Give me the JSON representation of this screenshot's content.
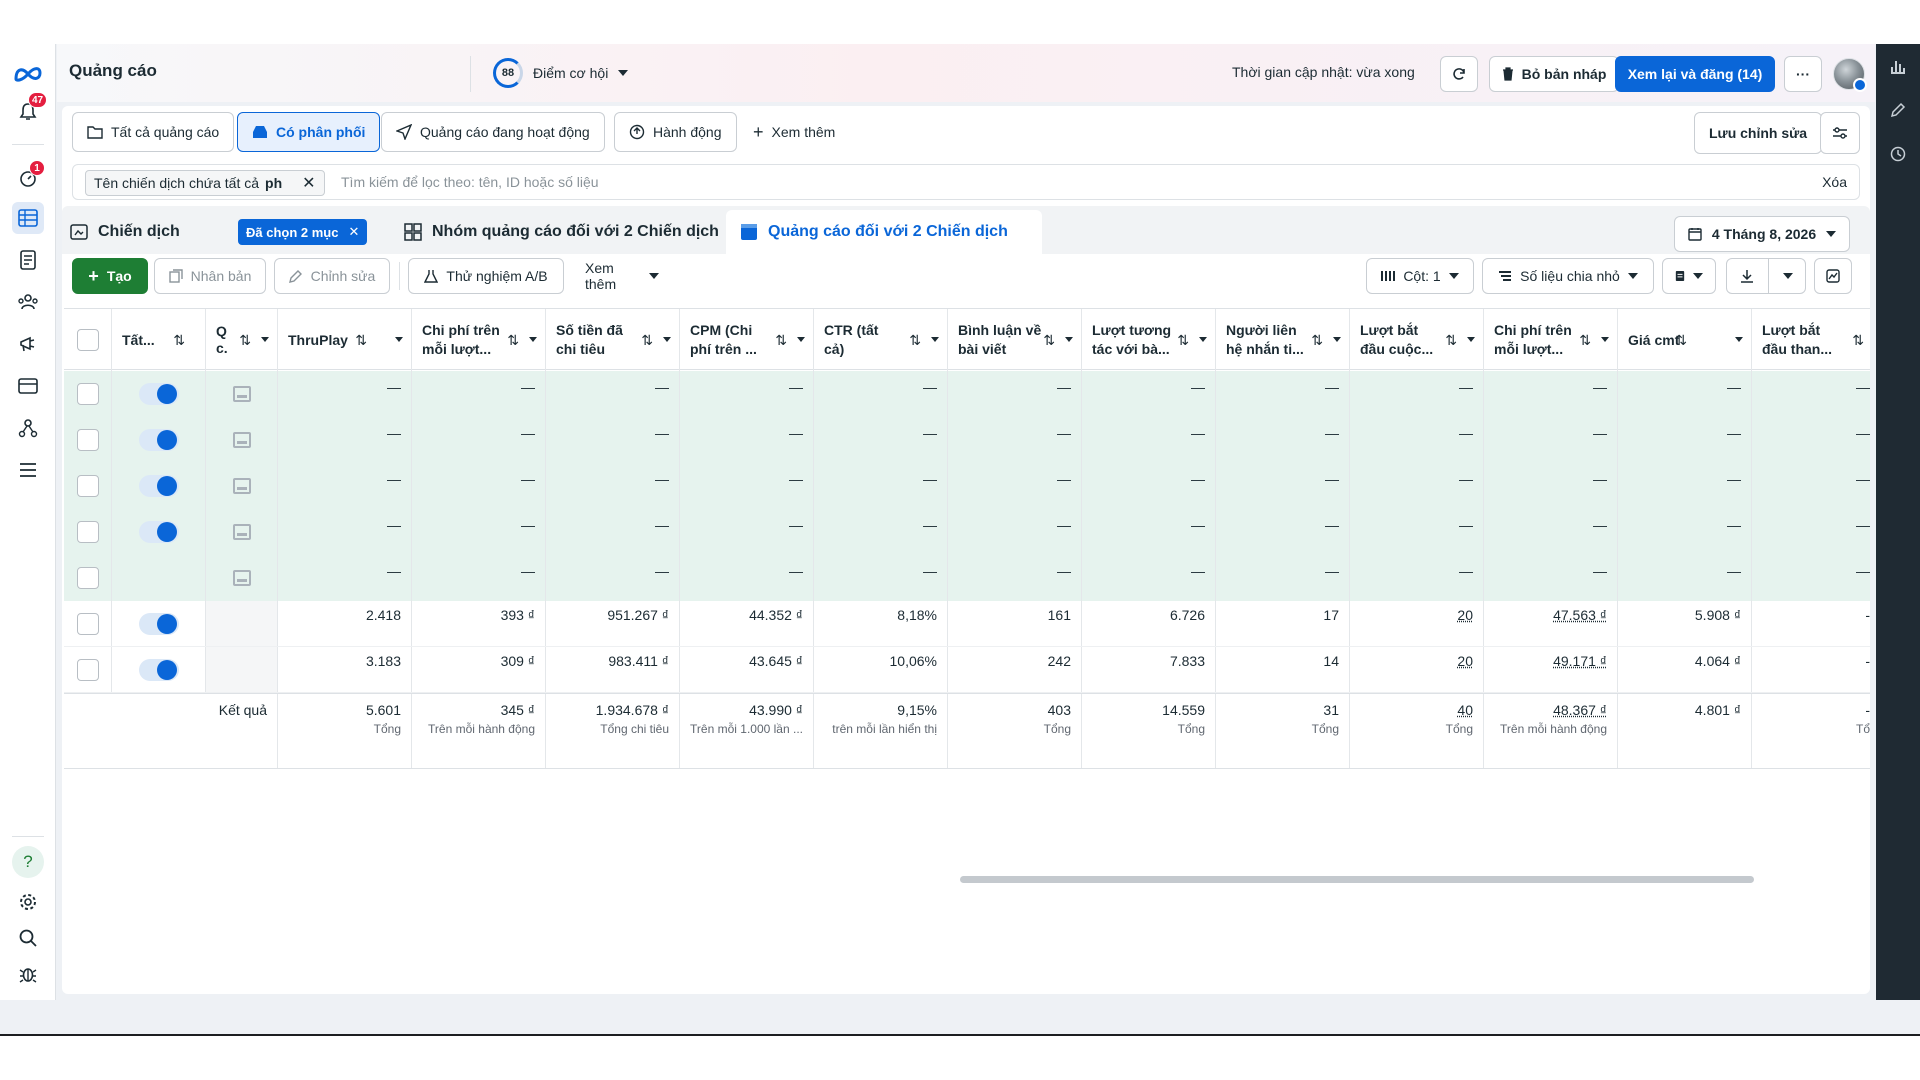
{
  "header": {
    "title": "Quảng cáo",
    "score_value": "88",
    "score_label": "Điểm cơ hội",
    "update_time": "Thời gian cập nhật: vừa xong",
    "discard_label": "Bỏ bản nháp",
    "review_label": "Xem lại và đăng (14)",
    "more_label": "···"
  },
  "leftnav": {
    "notifications_badge": "47",
    "alerts_badge": "1"
  },
  "chips": {
    "all_ads": "Tất cả quảng cáo",
    "delivering": "Có phân phối",
    "active_ads": "Quảng cáo đang hoạt động",
    "actions": "Hành động",
    "see_more": "Xem thêm",
    "save_edits": "Lưu chỉnh sửa"
  },
  "filter": {
    "token_label": "Tên chiến dịch chứa tất cả",
    "token_value": "ph",
    "placeholder": "Tìm kiếm để lọc theo: tên, ID hoặc số liệu",
    "clear": "Xóa"
  },
  "tabs": {
    "campaigns": "Chiến dịch",
    "selected_pill": "Đã chọn 2 mục",
    "adsets": "Nhóm quảng cáo đối với 2 Chiến dịch",
    "ads": "Quảng cáo đối với 2 Chiến dịch",
    "date": "4 Tháng 8, 2026"
  },
  "toolbar": {
    "create": "Tạo",
    "duplicate": "Nhân bản",
    "edit": "Chỉnh sửa",
    "ab_test": "Thử nghiệm A/B",
    "see_more": "Xem thêm",
    "columns": "Cột: 1",
    "breakdown": "Số liệu chia nhỏ"
  },
  "table": {
    "headers": [
      "Tất...",
      "Q c.",
      "ThruPlay",
      "Chi phí trên mỗi lượt...",
      "Số tiền đã chi tiêu",
      "CPM (Chi phí trên ...",
      "CTR (tất cả)",
      "Bình luận về bài viết",
      "Lượt tương tác với bà...",
      "Người liên hệ nhắn ti...",
      "Lượt bắt đầu cuộc...",
      "Chi phí trên mỗi lượt...",
      "Giá cmt",
      "Lượt bắt đầu than..."
    ],
    "dash": "—",
    "rows": [
      [
        "2.418",
        "393 ₫",
        "951.267 ₫",
        "44.352 ₫",
        "8,18%",
        "161",
        "6.726",
        "17",
        "20",
        "47.563 ₫",
        "5.908 ₫"
      ],
      [
        "3.183",
        "309 ₫",
        "983.411 ₫",
        "43.645 ₫",
        "10,06%",
        "242",
        "7.833",
        "14",
        "20",
        "49.171 ₫",
        "4.064 ₫"
      ]
    ],
    "summary": {
      "label": "Kết quả",
      "values": [
        "5.601",
        "345 ₫",
        "1.934.678 ₫",
        "43.990 ₫",
        "9,15%",
        "403",
        "14.559",
        "31",
        "40",
        "48.367 ₫",
        "4.801 ₫"
      ],
      "subs": [
        "Tổng",
        "Trên mỗi hành động",
        "Tổng chi tiêu",
        "Trên mỗi 1.000 lần ...",
        "trên mỗi lần hiển thị",
        "Tổng",
        "Tổng",
        "Tổng",
        "Tổng",
        "Trên mỗi hành động",
        "",
        "Tổ"
      ]
    }
  },
  "colors": {
    "primary": "#0a66d8",
    "create_green": "#1e7e34",
    "row_highlight": "#e6f3ee",
    "badge_red": "#e41e3f"
  }
}
